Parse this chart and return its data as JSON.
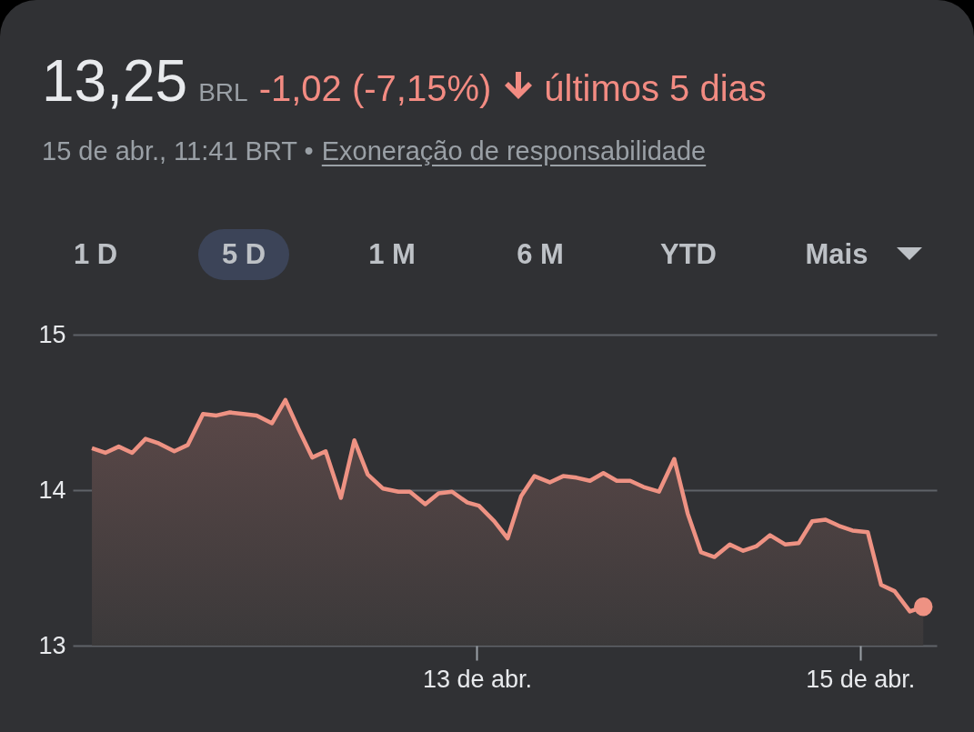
{
  "chart_data": {
    "type": "area",
    "title": "13,25",
    "subtitle": "15 de abr., 11:41 BRT •",
    "annotations": [
      "BRL",
      "-1,02 (-7,15%)",
      "últimos 5 dias",
      "Exoneração de responsabilidade",
      "1 D",
      "5 D",
      "1 M",
      "6 M",
      "YTD",
      "Mais"
    ],
    "x": [
      10.99,
      11.06,
      11.13,
      11.2,
      11.27,
      11.34,
      11.42,
      11.49,
      11.57,
      11.64,
      11.71,
      11.78,
      11.85,
      11.93,
      12.0,
      12.07,
      12.14,
      12.21,
      12.29,
      12.36,
      12.43,
      12.51,
      12.59,
      12.65,
      12.73,
      12.8,
      12.87,
      12.95,
      13.01,
      13.09,
      13.16,
      13.23,
      13.3,
      13.38,
      13.45,
      13.52,
      13.59,
      13.66,
      13.73,
      13.8,
      13.87,
      13.95,
      14.03,
      14.1,
      14.17,
      14.24,
      14.32,
      14.39,
      14.46,
      14.53,
      14.61,
      14.68,
      14.75,
      14.82,
      14.89,
      14.96,
      15.04,
      15.11,
      15.18,
      15.26,
      15.33
    ],
    "series": [
      {
        "color": "#ee9283",
        "values": [
          14.27,
          14.24,
          14.28,
          14.24,
          14.33,
          14.3,
          14.25,
          14.29,
          14.49,
          14.48,
          14.5,
          14.49,
          14.48,
          14.43,
          14.58,
          14.39,
          14.21,
          14.25,
          13.95,
          14.32,
          14.1,
          14.01,
          13.99,
          13.99,
          13.91,
          13.98,
          13.99,
          13.92,
          13.9,
          13.8,
          13.69,
          13.96,
          14.09,
          14.05,
          14.09,
          14.08,
          14.06,
          14.11,
          14.06,
          14.06,
          14.02,
          13.99,
          14.2,
          13.85,
          13.6,
          13.57,
          13.65,
          13.61,
          13.64,
          13.71,
          13.65,
          13.66,
          13.8,
          13.81,
          13.77,
          13.74,
          13.73,
          13.39,
          13.35,
          13.22,
          13.25
        ]
      }
    ],
    "xlim": [
      10.89,
      15.4
    ],
    "xticks": [
      {
        "value": 13,
        "label": "13 de abr."
      },
      {
        "value": 15,
        "label": "15 de abr."
      }
    ],
    "ylim": [
      13,
      15
    ],
    "yticks": [
      13,
      14,
      15
    ],
    "grid": "y"
  }
}
